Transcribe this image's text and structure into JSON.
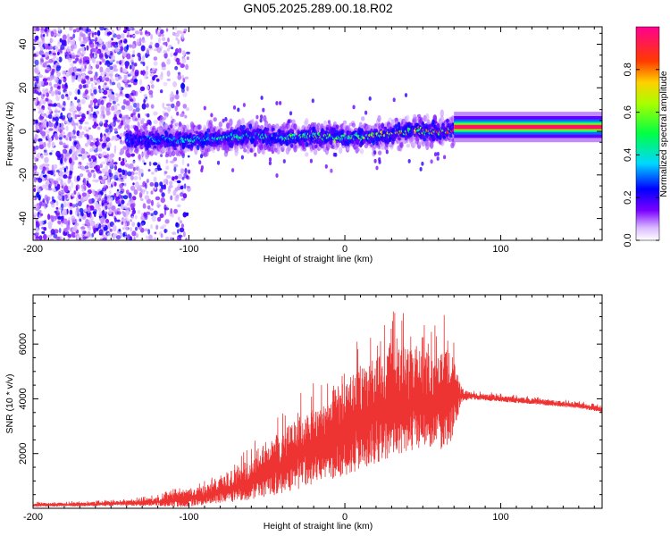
{
  "title": "GN05.2025.289.00.18.R02",
  "chart_data": [
    {
      "type": "heatmap",
      "name": "spectrogram",
      "xlabel": "Height of straight line (km)",
      "ylabel": "Frequency (Hz)",
      "xlim": [
        -200,
        165
      ],
      "ylim": [
        -50,
        48
      ],
      "xticks": [
        -200,
        -100,
        0,
        100
      ],
      "yticks": [
        -40,
        -20,
        0,
        20,
        40
      ],
      "colorbar": {
        "label": "Normalized spectral amplitude",
        "range": [
          0,
          1
        ],
        "ticks": [
          0.0,
          0.2,
          0.4,
          0.6,
          0.8
        ],
        "tick_labels": [
          "0.0",
          "0.2",
          "0.4",
          "0.6",
          "0.8"
        ]
      },
      "signal_track": {
        "x": [
          -140,
          -120,
          -100,
          -80,
          -60,
          -40,
          -20,
          0,
          20,
          40,
          60,
          70,
          100,
          130,
          165
        ],
        "center_freq": [
          -4,
          -4,
          -4,
          -3,
          -2,
          -3,
          -2,
          -3,
          -2,
          0,
          0,
          1,
          2,
          2,
          2
        ],
        "amplitude": [
          0.3,
          0.35,
          0.4,
          0.45,
          0.45,
          0.5,
          0.6,
          0.55,
          0.65,
          0.75,
          0.8,
          0.9,
          0.95,
          0.95,
          0.95
        ]
      },
      "noise_region": {
        "x_range": [
          -200,
          -110
        ],
        "amplitude": [
          0.05,
          0.25
        ]
      }
    },
    {
      "type": "line",
      "name": "snr",
      "xlabel": "Height of straight line (km)",
      "ylabel": "SNR (10 * v/v)",
      "xlim": [
        -200,
        165
      ],
      "ylim": [
        0,
        7800
      ],
      "xticks": [
        -200,
        -100,
        0,
        100
      ],
      "yticks": [
        2000,
        4000,
        6000
      ],
      "color": "#ee3333",
      "series": [
        {
          "name": "SNR",
          "x": [
            -200,
            -180,
            -160,
            -140,
            -120,
            -110,
            -100,
            -90,
            -80,
            -70,
            -60,
            -50,
            -40,
            -30,
            -20,
            -10,
            0,
            10,
            20,
            30,
            40,
            50,
            60,
            65,
            70,
            75,
            80,
            90,
            100,
            110,
            120,
            130,
            140,
            150,
            160,
            165
          ],
          "mean": [
            120,
            130,
            150,
            180,
            230,
            280,
            350,
            450,
            600,
            800,
            1000,
            1300,
            1600,
            1900,
            2200,
            2500,
            2800,
            3100,
            3400,
            3700,
            3850,
            3850,
            3800,
            3800,
            4000,
            4100,
            4100,
            4050,
            4000,
            3950,
            3900,
            3850,
            3800,
            3750,
            3650,
            3600
          ],
          "spread": [
            80,
            80,
            90,
            110,
            180,
            300,
            350,
            400,
            500,
            700,
            900,
            1100,
            1300,
            1500,
            1600,
            1800,
            2000,
            2100,
            2200,
            2300,
            2200,
            2000,
            1900,
            2300,
            1500,
            300,
            150,
            140,
            130,
            130,
            120,
            120,
            120,
            120,
            120,
            120
          ]
        }
      ]
    }
  ]
}
